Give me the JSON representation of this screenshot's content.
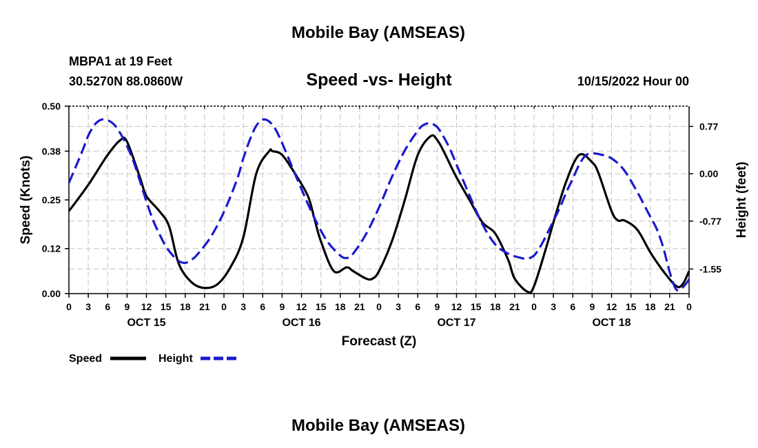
{
  "page": {
    "title_top": "Mobile Bay (AMSEAS)",
    "title_bottom": "Mobile Bay (AMSEAS)",
    "station": "MBPA1 at 19 Feet",
    "coords": "30.5270N  88.0860W",
    "timestamp": "10/15/2022 Hour 00"
  },
  "chart_data": {
    "type": "line",
    "title": "Speed -vs- Height",
    "xlabel": "Forecast (Z)",
    "ylabel_left": "Speed (Knots)",
    "ylabel_right": "Height (feet)",
    "x_range_hours": [
      0,
      96
    ],
    "x_tick_labels": [
      "0",
      "3",
      "6",
      "9",
      "12",
      "15",
      "18",
      "21",
      "0",
      "3",
      "6",
      "9",
      "12",
      "15",
      "18",
      "21",
      "0",
      "3",
      "6",
      "9",
      "12",
      "15",
      "18",
      "21",
      "0",
      "3",
      "6",
      "9",
      "12",
      "15",
      "18",
      "21",
      "0"
    ],
    "day_labels": [
      "OCT 15",
      "OCT 16",
      "OCT 17",
      "OCT 18"
    ],
    "y_left": {
      "range": [
        0,
        0.5
      ],
      "ticks": [
        "0.00",
        "0.12",
        "0.25",
        "0.38",
        "0.50"
      ]
    },
    "y_right": {
      "range": [
        -1.95,
        1.1
      ],
      "ticks": [
        "0.77",
        "0.00",
        "-0.77",
        "-1.55"
      ]
    },
    "grid": true,
    "legend": "bottom-left",
    "series": [
      {
        "name": "Speed",
        "axis": "left",
        "color": "#000000",
        "dash": "solid",
        "x": [
          0,
          3,
          6,
          8,
          9,
          11,
          12,
          14,
          15.5,
          17,
          19,
          21,
          23,
          25,
          27,
          29,
          31,
          31.5,
          33,
          35,
          37,
          38,
          39,
          41,
          43,
          44,
          46,
          47,
          48,
          50,
          52,
          54,
          56,
          57,
          58,
          60,
          62,
          64,
          66,
          68,
          69,
          71,
          72,
          74,
          75,
          77,
          79,
          81,
          82,
          84,
          85,
          86,
          88,
          90,
          92,
          94,
          95,
          96
        ],
        "values": [
          0.22,
          0.29,
          0.37,
          0.41,
          0.405,
          0.31,
          0.26,
          0.22,
          0.18,
          0.08,
          0.03,
          0.015,
          0.025,
          0.07,
          0.15,
          0.32,
          0.38,
          0.38,
          0.37,
          0.32,
          0.26,
          0.2,
          0.14,
          0.06,
          0.07,
          0.06,
          0.04,
          0.04,
          0.06,
          0.14,
          0.25,
          0.37,
          0.42,
          0.41,
          0.38,
          0.31,
          0.25,
          0.19,
          0.16,
          0.09,
          0.04,
          0.005,
          0.02,
          0.13,
          0.19,
          0.3,
          0.37,
          0.35,
          0.32,
          0.22,
          0.195,
          0.195,
          0.17,
          0.11,
          0.06,
          0.02,
          0.025,
          0.06
        ]
      },
      {
        "name": "Height",
        "axis": "right",
        "color": "#1a1acc",
        "dash": "dashed",
        "x": [
          0,
          2,
          3,
          4,
          5,
          6,
          7,
          8,
          9,
          10,
          11,
          12,
          13,
          14,
          15,
          16,
          17,
          18,
          19,
          20,
          22,
          24,
          26,
          27,
          28,
          29,
          30,
          31,
          32,
          33,
          34,
          36,
          38,
          40,
          42,
          43,
          44,
          46,
          48,
          50,
          52,
          54,
          55,
          56,
          57,
          58,
          59,
          60,
          62,
          64,
          66,
          68,
          70,
          71,
          72,
          73,
          74,
          76,
          77,
          78,
          79,
          80,
          81,
          82,
          84,
          86,
          88,
          89,
          90,
          91,
          92,
          93,
          94,
          95,
          96
        ],
        "values": [
          -0.15,
          0.35,
          0.62,
          0.8,
          0.88,
          0.87,
          0.8,
          0.65,
          0.45,
          0.2,
          -0.12,
          -0.45,
          -0.75,
          -0.98,
          -1.18,
          -1.32,
          -1.42,
          -1.45,
          -1.4,
          -1.3,
          -1.02,
          -0.62,
          -0.1,
          0.25,
          0.55,
          0.78,
          0.88,
          0.85,
          0.72,
          0.5,
          0.25,
          -0.25,
          -0.72,
          -1.1,
          -1.33,
          -1.37,
          -1.3,
          -0.98,
          -0.55,
          -0.05,
          0.38,
          0.7,
          0.8,
          0.82,
          0.76,
          0.6,
          0.4,
          0.15,
          -0.35,
          -0.82,
          -1.15,
          -1.3,
          -1.37,
          -1.38,
          -1.33,
          -1.18,
          -0.98,
          -0.55,
          -0.3,
          -0.08,
          0.15,
          0.3,
          0.33,
          0.32,
          0.25,
          0.05,
          -0.3,
          -0.5,
          -0.7,
          -0.9,
          -1.2,
          -1.6,
          -1.88,
          -1.85,
          -1.72
        ]
      }
    ]
  }
}
